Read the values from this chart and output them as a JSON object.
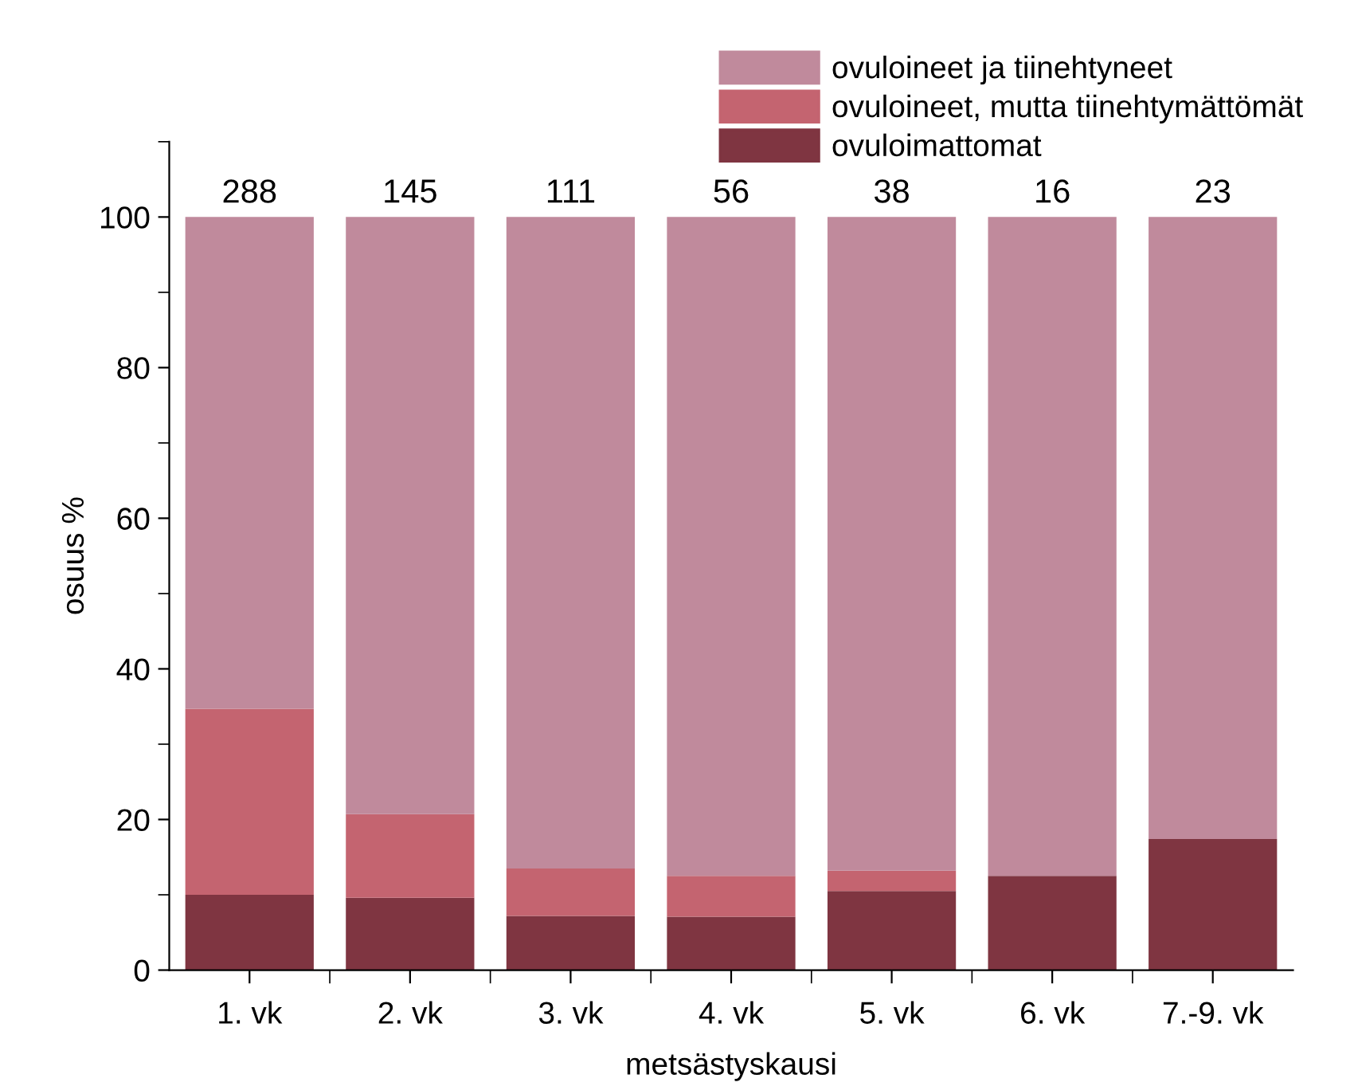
{
  "chart_data": {
    "type": "bar",
    "stacked": true,
    "xlabel": "metsästyskausi",
    "ylabel": "osuus %",
    "categories": [
      "1. vk",
      "2. vk",
      "3. vk",
      "4. vk",
      "5. vk",
      "6. vk",
      "7.-9. vk"
    ],
    "series": [
      {
        "name": "ovuloimattomat",
        "color": "#7f3541",
        "values": [
          10.0,
          9.6,
          7.2,
          7.1,
          10.5,
          12.5,
          17.4
        ]
      },
      {
        "name": "ovuloineet, mutta tiinehtymättömät",
        "color": "#c46470",
        "values": [
          24.7,
          11.1,
          6.3,
          5.4,
          2.7,
          0,
          0
        ]
      },
      {
        "name": "ovuloineet ja tiinehtyneet",
        "color": "#c08a9c",
        "values": [
          65.3,
          79.3,
          86.5,
          87.5,
          86.8,
          87.5,
          82.6
        ]
      }
    ],
    "annotations": [
      {
        "text": "288",
        "x": "1. vk",
        "y": 100
      },
      {
        "text": "145",
        "x": "2. vk",
        "y": 100
      },
      {
        "text": "111",
        "x": "3. vk",
        "y": 100
      },
      {
        "text": "56",
        "x": "4. vk",
        "y": 100
      },
      {
        "text": "38",
        "x": "5. vk",
        "y": 100
      },
      {
        "text": "16",
        "x": "6. vk",
        "y": 100
      },
      {
        "text": "23",
        "x": "7.-9. vk",
        "y": 100
      }
    ],
    "ylim": [
      0,
      110
    ],
    "yticks": [
      0,
      20,
      40,
      60,
      80,
      100
    ],
    "grid": false,
    "legend": "top right"
  }
}
